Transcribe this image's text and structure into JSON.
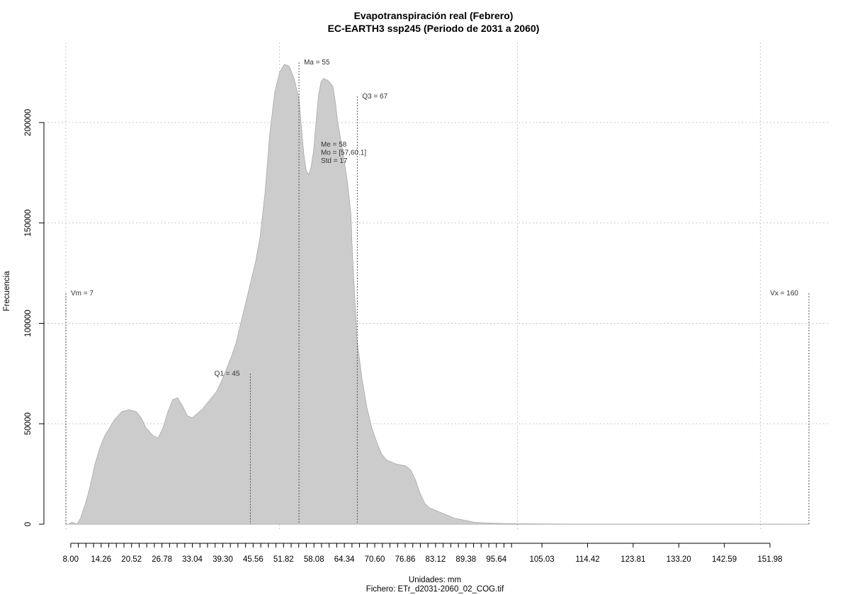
{
  "chart_data": {
    "type": "area",
    "title": "Evapotranspiración real (Febrero)",
    "subtitle": "EC-EARTH3 ssp245 (Periodo de 2031 a 2060)",
    "xlabel": "Unidades: mm",
    "ylabel": "Frecuencia",
    "footer": "Fichero: ETr_d2031-2060_02_COG.tif",
    "xlim": [
      7,
      160
    ],
    "ylim": [
      0,
      230000
    ],
    "fill_color": "#cccccc",
    "stroke_color": "#999999",
    "grid": true,
    "x_ticks": [
      8.0,
      9.57,
      11.13,
      12.7,
      14.26,
      15.83,
      17.39,
      18.96,
      20.52,
      22.09,
      23.65,
      25.22,
      26.78,
      28.35,
      29.91,
      31.48,
      33.04,
      34.61,
      36.17,
      37.74,
      39.3,
      40.87,
      42.43,
      44.0,
      45.56,
      47.13,
      48.69,
      50.26,
      51.82,
      53.39,
      54.95,
      56.52,
      58.08,
      59.65,
      61.21,
      62.78,
      64.34,
      65.91,
      67.47,
      69.04,
      70.6,
      72.17,
      73.73,
      75.3,
      76.86,
      78.43,
      79.99,
      81.56,
      83.12,
      84.69,
      86.25,
      87.82,
      89.38,
      90.95,
      92.51,
      94.08,
      95.64,
      97.21,
      98.77,
      105.03,
      114.42,
      123.81,
      133.2,
      142.59,
      151.98
    ],
    "x_tick_labels": [
      "8.00",
      "14.26",
      "20.52",
      "26.78",
      "33.04",
      "39.30",
      "45.56",
      "51.82",
      "58.08",
      "64.34",
      "70.60",
      "76.86",
      "83.12",
      "89.38",
      "95.64",
      "105.03",
      "114.42",
      "123.81",
      "133.20",
      "142.59",
      "151.98"
    ],
    "y_ticks": [
      0,
      50000,
      100000,
      150000,
      200000
    ],
    "y_tick_labels": [
      "0",
      "50000",
      "100000",
      "150000",
      "200000"
    ],
    "x_grid": [
      7,
      51,
      100,
      150
    ],
    "y_grid": [
      50000,
      100000,
      150000,
      200000
    ],
    "x": [
      7.5,
      8.3,
      8.8,
      9.3,
      10.0,
      11.0,
      12.0,
      13.0,
      14.0,
      15.0,
      16.0,
      17.0,
      18.5,
      20.0,
      21.5,
      22.5,
      23.5,
      25.0,
      26.0,
      27.0,
      28.0,
      29.0,
      30.0,
      31.0,
      32.0,
      33.0,
      34.0,
      35.0,
      36.0,
      37.0,
      38.0,
      39.0,
      40.0,
      41.0,
      42.0,
      43.0,
      44.0,
      45.0,
      46.0,
      47.0,
      48.0,
      49.0,
      50.0,
      51.0,
      52.0,
      53.0,
      54.0,
      55.0,
      55.5,
      56.0,
      56.5,
      57.0,
      57.5,
      58.0,
      58.5,
      59.0,
      59.5,
      60.0,
      61.0,
      62.0,
      62.5,
      63.0,
      64.0,
      65.0,
      65.7,
      66.0,
      66.5,
      67.0,
      68.0,
      69.0,
      70.0,
      71.0,
      72.0,
      73.0,
      74.0,
      75.0,
      76.0,
      77.0,
      78.0,
      79.0,
      80.0,
      81.0,
      82.0,
      83.0,
      84.0,
      85.0,
      86.0,
      87.0,
      88.0,
      89.0,
      90.0,
      91.0,
      93.0,
      95.0,
      97.0,
      100.0,
      103.0,
      106.0,
      110.0,
      114.0,
      120.0,
      130.0,
      140.0,
      150.0,
      160.0
    ],
    "y": [
      0,
      1000,
      500,
      0,
      3000,
      10000,
      19000,
      30000,
      38000,
      44000,
      48000,
      52000,
      56000,
      57000,
      56000,
      53000,
      48000,
      44000,
      43000,
      48000,
      56000,
      62000,
      63000,
      59000,
      54000,
      53000,
      55000,
      57000,
      60000,
      63000,
      66000,
      71000,
      77000,
      83000,
      90000,
      100000,
      110000,
      120000,
      130000,
      143000,
      165000,
      195000,
      215000,
      225000,
      229000,
      228000,
      222000,
      212000,
      198000,
      184000,
      176000,
      174000,
      178000,
      186000,
      200000,
      213000,
      220000,
      222000,
      221000,
      218000,
      210000,
      200000,
      186000,
      170000,
      154000,
      135000,
      113000,
      91000,
      72000,
      58000,
      48000,
      41000,
      35000,
      32000,
      31000,
      30000,
      29500,
      29000,
      27000,
      22000,
      15000,
      10000,
      8000,
      7000,
      6000,
      5000,
      4000,
      3000,
      2500,
      2000,
      1500,
      1000,
      700,
      500,
      300,
      200,
      150,
      100,
      80,
      60,
      50,
      40,
      30,
      20,
      10
    ],
    "annotations": [
      {
        "label": "Vm = 7",
        "x": 7,
        "y_top": 115000,
        "side": "right"
      },
      {
        "label": "Q1 = 45",
        "x": 45,
        "y_top": 75000,
        "side": "left"
      },
      {
        "label": "Ma = 55",
        "x": 55,
        "y_top": 230000,
        "side": "right"
      },
      {
        "label": "Q3 = 67",
        "x": 67,
        "y_top": 213000,
        "side": "right"
      },
      {
        "label": "Vx = 160",
        "x": 160,
        "y_top": 115000,
        "side": "left"
      }
    ],
    "stats": {
      "line1": "Me = 58",
      "line2": "Mo = [57,60.1]",
      "line3": "Std = 17"
    },
    "stats_anchor": {
      "x": 59.5,
      "y": 188000
    }
  }
}
